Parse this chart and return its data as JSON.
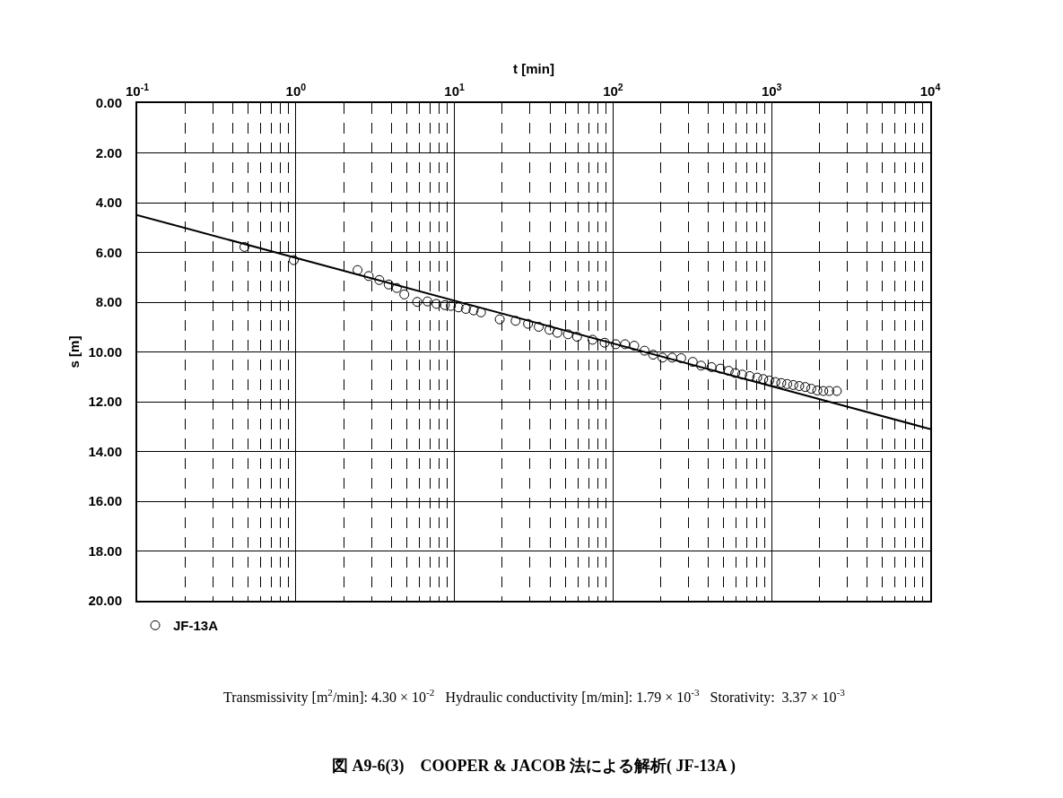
{
  "chart_data": {
    "type": "scatter",
    "title": "図 A9-6(3)　COOPER & JACOB 法による解析( JF-13A )",
    "xlabel": "t [min]",
    "ylabel": "s [m]",
    "log": "x",
    "xlim": [
      0.1,
      10000
    ],
    "xticks": [
      {
        "value": 0.1,
        "label": "10$^{-1}$"
      },
      {
        "value": 1,
        "label": "10$^{0}$"
      },
      {
        "value": 10,
        "label": "10$^{1}$"
      },
      {
        "value": 100,
        "label": "10$^{2}$"
      },
      {
        "value": 1000,
        "label": "10$^{3}$"
      },
      {
        "value": 10000,
        "label": "10$^{4}$"
      }
    ],
    "ylim": [
      20,
      0
    ],
    "yticks": [
      {
        "value": 0,
        "label": "0.00"
      },
      {
        "value": 2,
        "label": "2.00"
      },
      {
        "value": 4,
        "label": "4.00"
      },
      {
        "value": 6,
        "label": "6.00"
      },
      {
        "value": 8,
        "label": "8.00"
      },
      {
        "value": 10,
        "label": "10.00"
      },
      {
        "value": 12,
        "label": "12.00"
      },
      {
        "value": 14,
        "label": "14.00"
      },
      {
        "value": 16,
        "label": "16.00"
      },
      {
        "value": 18,
        "label": "18.00"
      },
      {
        "value": 20,
        "label": "20.00"
      }
    ],
    "grid": true,
    "legend": "bottom left",
    "annotations": [
      "Transmissivity [m$^{2}$/min]: 4.30 × 10$^{-2}$   Hydraulic conductivity [m/min]: 1.79 × 10$^{-3}$   Storativity:  3.37 × 10$^{-3}$"
    ],
    "series": [
      {
        "name": "JF-13A",
        "marker": "circle",
        "color": "#000000",
        "x": [
          0.474,
          0.97,
          2.45,
          2.88,
          3.36,
          3.85,
          4.33,
          4.83,
          5.82,
          6.76,
          7.7,
          8.7,
          9.5,
          10.6,
          11.8,
          13.2,
          14.7,
          19.3,
          24.3,
          29.1,
          34.0,
          39.7,
          44.6,
          52,
          59.3,
          74.3,
          88.5,
          104,
          119,
          136,
          158,
          179,
          205,
          236,
          269,
          318,
          359,
          418,
          475,
          536,
          590,
          652,
          728,
          811,
          885,
          966,
          1054,
          1150,
          1254,
          1368,
          1493,
          1629,
          1778,
          1940,
          2117,
          2310,
          2577
        ],
        "values": [
          5.78,
          6.31,
          6.71,
          6.95,
          7.11,
          7.29,
          7.43,
          7.69,
          7.99,
          7.97,
          8.07,
          8.12,
          8.15,
          8.21,
          8.27,
          8.33,
          8.41,
          8.69,
          8.75,
          8.87,
          8.99,
          9.11,
          9.23,
          9.29,
          9.39,
          9.51,
          9.63,
          9.69,
          9.69,
          9.75,
          9.95,
          10.11,
          10.23,
          10.23,
          10.25,
          10.4,
          10.55,
          10.61,
          10.67,
          10.76,
          10.85,
          10.91,
          10.97,
          11.03,
          11.09,
          11.15,
          11.21,
          11.25,
          11.29,
          11.33,
          11.37,
          11.41,
          11.48,
          11.55,
          11.57,
          11.57,
          11.57
        ]
      },
      {
        "type": "line",
        "color": "#000000",
        "line_style": "solid",
        "x": [
          0.1,
          10000
        ],
        "values": [
          4.5,
          13.1
        ]
      }
    ]
  }
}
